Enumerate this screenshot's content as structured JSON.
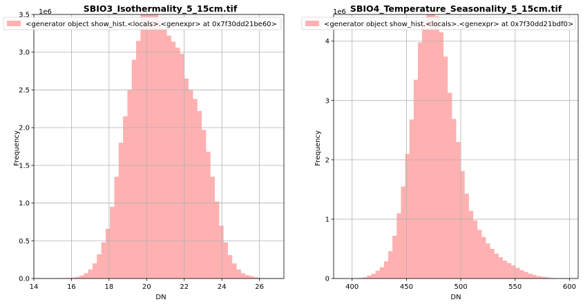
{
  "chart_data": [
    {
      "type": "bar",
      "title": "SBIO3_Isothermality_5_15cm.tif",
      "xlabel": "DN",
      "ylabel": "Frequency",
      "y_offset_text": "1e6",
      "xlim": [
        14,
        27.3
      ],
      "ylim": [
        0,
        3.5
      ],
      "xticks": [
        14,
        16,
        18,
        20,
        22,
        24,
        26
      ],
      "yticks": [
        0.0,
        0.5,
        1.0,
        1.5,
        2.0,
        2.5,
        3.0,
        3.5
      ],
      "xtick_labels": [
        "14",
        "16",
        "18",
        "20",
        "22",
        "24",
        "26"
      ],
      "ytick_labels": [
        "0.0",
        "0.5",
        "1.0",
        "1.5",
        "2.0",
        "2.5",
        "3.0",
        "3.5"
      ],
      "grid": true,
      "legend_position": "top-left",
      "color": "#ffb1b1",
      "series": [
        {
          "name": "<generator object show_hist.<locals>.<genexpr> at 0x7f30dd21be60>",
          "bin_start": 14.8,
          "bin_width": 0.232,
          "values": [
            0.003,
            0.004,
            0.005,
            0.006,
            0.008,
            0.012,
            0.02,
            0.04,
            0.07,
            0.12,
            0.2,
            0.32,
            0.48,
            0.66,
            0.95,
            1.35,
            1.8,
            2.15,
            2.5,
            2.9,
            3.15,
            3.55,
            3.8,
            3.68,
            3.55,
            3.42,
            3.3,
            3.22,
            3.14,
            3.06,
            2.98,
            2.65,
            2.5,
            2.38,
            2.22,
            1.97,
            1.68,
            1.35,
            1.02,
            0.7,
            0.48,
            0.31,
            0.2,
            0.12,
            0.07,
            0.045,
            0.03,
            0.015,
            0.007,
            0.003,
            0.001
          ]
        }
      ]
    },
    {
      "type": "bar",
      "title": "SBIO4_Temperature_Seasonality_5_15cm.tif",
      "xlabel": "DN",
      "ylabel": "Frequency",
      "y_offset_text": "1e6",
      "xlim": [
        383,
        608
      ],
      "ylim": [
        0,
        4.45
      ],
      "xticks": [
        400,
        450,
        500,
        550,
        600
      ],
      "yticks": [
        0,
        1,
        2,
        3,
        4
      ],
      "xtick_labels": [
        "400",
        "450",
        "500",
        "550",
        "600"
      ],
      "ytick_labels": [
        "0",
        "1",
        "2",
        "3",
        "4"
      ],
      "grid": true,
      "legend_position": "top-center",
      "color": "#ffb1b1",
      "series": [
        {
          "name": "<generator object show_hist.<locals>.<genexpr> at 0x7f30dd21bdf0>",
          "bin_start": 402,
          "bin_width": 3.9,
          "values": [
            0.005,
            0.01,
            0.02,
            0.05,
            0.08,
            0.13,
            0.19,
            0.29,
            0.46,
            0.72,
            1.1,
            1.55,
            2.1,
            2.68,
            3.35,
            3.98,
            4.35,
            4.55,
            4.6,
            4.42,
            4.15,
            3.74,
            3.13,
            2.69,
            2.3,
            1.81,
            1.43,
            1.14,
            0.98,
            0.82,
            0.7,
            0.59,
            0.5,
            0.42,
            0.36,
            0.3,
            0.26,
            0.22,
            0.18,
            0.14,
            0.11,
            0.08,
            0.06,
            0.04,
            0.03,
            0.02,
            0.01,
            0.005,
            0.002
          ]
        }
      ]
    }
  ]
}
